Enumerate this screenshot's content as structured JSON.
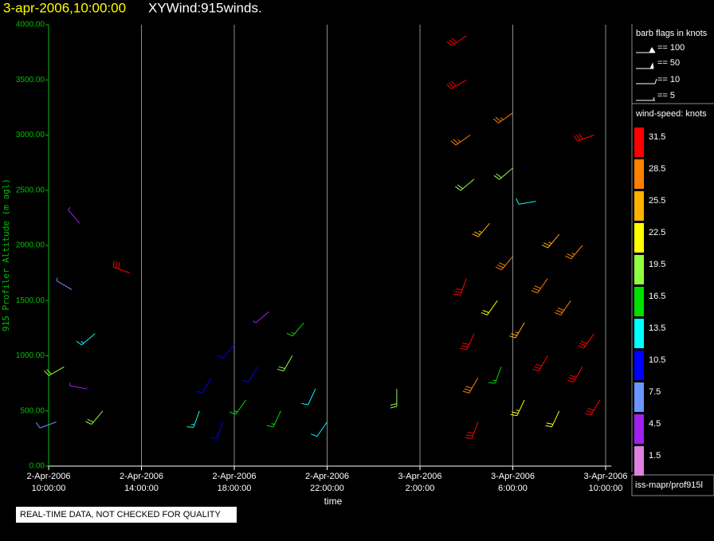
{
  "chart_data": {
    "type": "wind-barb",
    "title_time": "3-apr-2006,10:00:00",
    "title": "XYWind:915winds.",
    "y_label": "915 Profiler Altitude (m agl)",
    "x_label": "time",
    "xlim": [
      "2006-04-02T10:00:00",
      "2006-04-03T10:15:00"
    ],
    "xticks": [
      {
        "value": "2006-04-02T10:00:00",
        "label": [
          "2-Apr-2006",
          "10:00:00"
        ]
      },
      {
        "value": "2006-04-02T14:00:00",
        "label": [
          "2-Apr-2006",
          "14:00:00"
        ]
      },
      {
        "value": "2006-04-02T18:00:00",
        "label": [
          "2-Apr-2006",
          "18:00:00"
        ]
      },
      {
        "value": "2006-04-02T22:00:00",
        "label": [
          "2-Apr-2006",
          "22:00:00"
        ]
      },
      {
        "value": "2006-04-03T02:00:00",
        "label": [
          "3-Apr-2006",
          "2:00:00"
        ]
      },
      {
        "value": "2006-04-03T06:00:00",
        "label": [
          "3-Apr-2006",
          "6:00:00"
        ]
      },
      {
        "value": "2006-04-03T10:00:00",
        "label": [
          "3-Apr-2006",
          "10:00:00"
        ]
      }
    ],
    "ylim": [
      0,
      4000
    ],
    "yticks": [
      {
        "value": 0,
        "label": "0.00"
      },
      {
        "value": 500,
        "label": "500.00"
      },
      {
        "value": 1000,
        "label": "1000.00"
      },
      {
        "value": 1500,
        "label": "1500.00"
      },
      {
        "value": 2000,
        "label": "2000.00"
      },
      {
        "value": 2500,
        "label": "2500.00"
      },
      {
        "value": 3000,
        "label": "3000.00"
      },
      {
        "value": 3500,
        "label": "3500.00"
      },
      {
        "value": 4000,
        "label": "4000.00"
      }
    ],
    "grid": true,
    "barbs": {
      "x": [
        "2006-04-02T10:20:00",
        "2006-04-02T10:40:00",
        "2006-04-02T11:00:00",
        "2006-04-02T11:20:00",
        "2006-04-02T11:40:00",
        "2006-04-02T12:00:00",
        "2006-04-02T12:20:00",
        "2006-04-02T13:30:00",
        "2006-04-02T16:30:00",
        "2006-04-02T17:00:00",
        "2006-04-02T17:30:00",
        "2006-04-02T18:00:00",
        "2006-04-02T18:30:00",
        "2006-04-02T19:00:00",
        "2006-04-02T19:30:00",
        "2006-04-02T20:00:00",
        "2006-04-02T20:30:00",
        "2006-04-02T21:00:00",
        "2006-04-02T21:30:00",
        "2006-04-02T22:00:00",
        "2006-04-03T01:00:00",
        "2006-04-03T04:00:00",
        "2006-04-03T04:00:00",
        "2006-04-03T04:10:00",
        "2006-04-03T04:20:00",
        "2006-04-03T04:00:00",
        "2006-04-03T04:20:00",
        "2006-04-03T04:30:00",
        "2006-04-03T04:30:00",
        "2006-04-03T05:00:00",
        "2006-04-03T05:20:00",
        "2006-04-03T05:30:00",
        "2006-04-03T06:00:00",
        "2006-04-03T06:00:00",
        "2006-04-03T06:00:00",
        "2006-04-03T06:30:00",
        "2006-04-03T06:30:00",
        "2006-04-03T07:00:00",
        "2006-04-03T07:30:00",
        "2006-04-03T07:30:00",
        "2006-04-03T08:00:00",
        "2006-04-03T08:00:00",
        "2006-04-03T08:30:00",
        "2006-04-03T09:00:00",
        "2006-04-03T09:00:00",
        "2006-04-03T09:30:00",
        "2006-04-03T09:30:00",
        "2006-04-03T09:45:00"
      ],
      "y": [
        400,
        900,
        1600,
        2200,
        700,
        1200,
        500,
        1750,
        500,
        800,
        400,
        1100,
        600,
        900,
        1400,
        500,
        1000,
        1300,
        700,
        400,
        700,
        3900,
        3500,
        3000,
        2600,
        1700,
        1200,
        800,
        400,
        2200,
        1500,
        900,
        3200,
        2700,
        1900,
        1300,
        600,
        2400,
        1700,
        1000,
        2100,
        500,
        1500,
        2000,
        900,
        3000,
        1200,
        600
      ],
      "speed": [
        8,
        18,
        6,
        5,
        4,
        14,
        18,
        30,
        14,
        10,
        9,
        10,
        16,
        11,
        5,
        17,
        18,
        17,
        12,
        12,
        20,
        31,
        31,
        27,
        20,
        31,
        30,
        28,
        31,
        25,
        21,
        16,
        27,
        20,
        28,
        26,
        23,
        12,
        28,
        30,
        24,
        22,
        29,
        27,
        31,
        31,
        31,
        30
      ],
      "direction": [
        250,
        240,
        300,
        320,
        280,
        230,
        220,
        290,
        200,
        210,
        200,
        220,
        215,
        210,
        230,
        205,
        210,
        220,
        205,
        215,
        180,
        235,
        240,
        235,
        230,
        200,
        205,
        210,
        200,
        220,
        215,
        200,
        235,
        230,
        220,
        210,
        205,
        260,
        215,
        210,
        220,
        205,
        215,
        220,
        210,
        250,
        215,
        210
      ]
    },
    "flag_legend": {
      "title": "barb flags in knots",
      "entries": [
        "== 100",
        "== 50",
        "== 10",
        "== 5"
      ]
    },
    "colorbar": {
      "title": "wind-speed: knots",
      "levels": [
        31.5,
        28.5,
        25.5,
        22.5,
        19.5,
        16.5,
        13.5,
        10.5,
        7.5,
        4.5,
        1.5
      ],
      "colors": [
        "#ff0000",
        "#ff8000",
        "#ffb000",
        "#ffff00",
        "#90ff40",
        "#00e000",
        "#00ffff",
        "#0000ff",
        "#6a95ff",
        "#a020f0",
        "#e080e0"
      ]
    },
    "source": "iss-mapr/prof915l",
    "note": "REAL-TIME DATA, NOT CHECKED FOR QUALITY"
  }
}
